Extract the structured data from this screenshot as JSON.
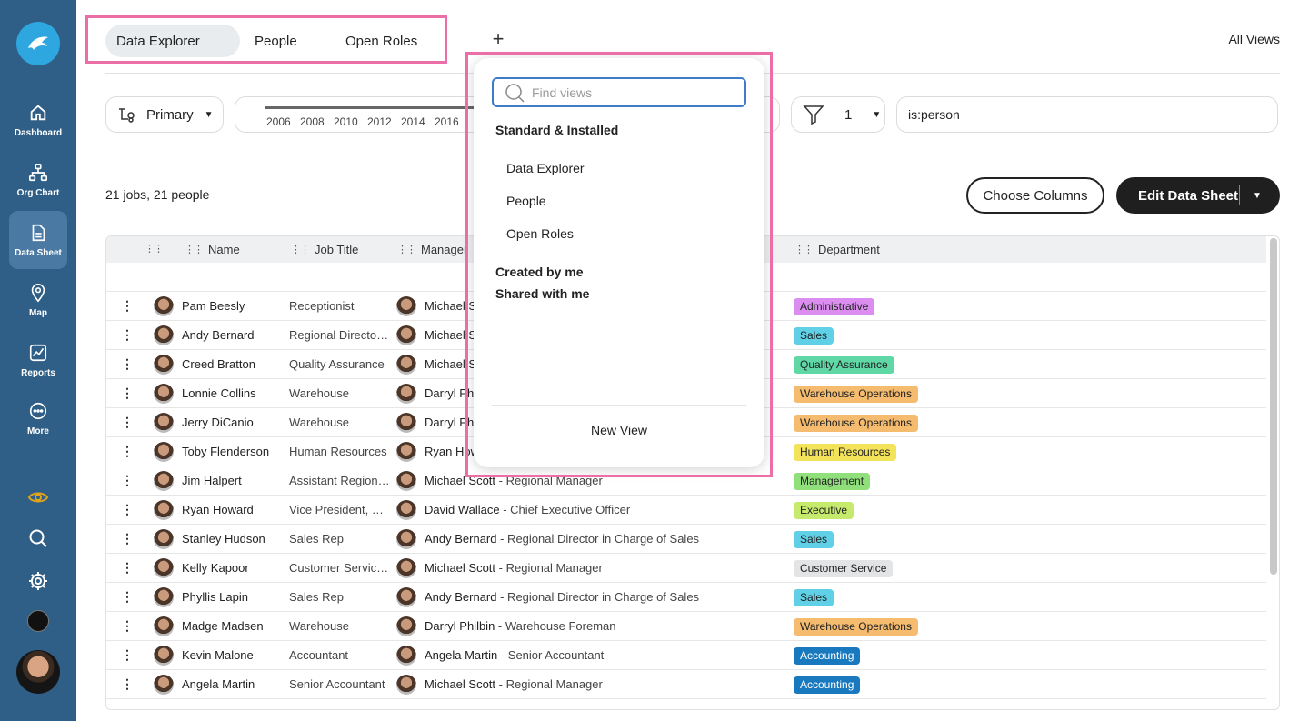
{
  "sidebar": {
    "items": [
      {
        "label": "Dashboard",
        "icon": "home-icon"
      },
      {
        "label": "Org Chart",
        "icon": "org-chart-icon"
      },
      {
        "label": "Data Sheet",
        "icon": "document-icon"
      },
      {
        "label": "Map",
        "icon": "map-pin-icon"
      },
      {
        "label": "Reports",
        "icon": "chart-icon"
      },
      {
        "label": "More",
        "icon": "more-icon"
      }
    ],
    "accent_eye": "#e0a41a"
  },
  "tabs": [
    "Data Explorer",
    "People",
    "Open Roles"
  ],
  "header": {
    "all_views": "All Views"
  },
  "toolbar": {
    "primary": "Primary",
    "years": [
      "2006",
      "2008",
      "2010",
      "2012",
      "2014",
      "2016"
    ],
    "filter_count": "1",
    "query": "is:person"
  },
  "summary": "21 jobs, 21 people",
  "buttons": {
    "choose_columns": "Choose Columns",
    "edit_data_sheet": "Edit Data Sheet"
  },
  "table": {
    "columns": [
      "Name",
      "Job Title",
      "Manager",
      "Department"
    ],
    "rows": [
      {
        "name": "Pam Beesly",
        "job": "Receptionist",
        "manager": "Michael Sc",
        "manager_title": "",
        "dept": "Administrative",
        "color": "#dc8ef0"
      },
      {
        "name": "Andy Bernard",
        "job": "Regional Director…",
        "manager": "Michael Sc",
        "manager_title": "",
        "dept": "Sales",
        "color": "#5fd0e6"
      },
      {
        "name": "Creed Bratton",
        "job": "Quality Assurance",
        "manager": "Michael Sc",
        "manager_title": "",
        "dept": "Quality Assurance",
        "color": "#5fd8a6"
      },
      {
        "name": "Lonnie Collins",
        "job": "Warehouse",
        "manager": "Darryl Phi",
        "manager_title": "",
        "dept": "Warehouse Operations",
        "color": "#f5bb6e"
      },
      {
        "name": "Jerry DiCanio",
        "job": "Warehouse",
        "manager": "Darryl Phi",
        "manager_title": "",
        "dept": "Warehouse Operations",
        "color": "#f5bb6e"
      },
      {
        "name": "Toby Flenderson",
        "job": "Human Resources",
        "manager": "Ryan How",
        "manager_title": "",
        "dept": "Human Resources",
        "color": "#f3e35a"
      },
      {
        "name": "Jim Halpert",
        "job": "Assistant Regiona…",
        "manager": "Michael Scott",
        "manager_title": " - Regional Manager",
        "dept": "Management",
        "color": "#8fe07a"
      },
      {
        "name": "Ryan Howard",
        "job": "Vice President, N…",
        "manager": "David Wallace",
        "manager_title": " - Chief Executive Officer",
        "dept": "Executive",
        "color": "#c6ea6c"
      },
      {
        "name": "Stanley Hudson",
        "job": "Sales Rep",
        "manager": "Andy Bernard",
        "manager_title": " - Regional Director in Charge of Sales",
        "dept": "Sales",
        "color": "#5fd0e6"
      },
      {
        "name": "Kelly Kapoor",
        "job": "Customer Service…",
        "manager": "Michael Scott",
        "manager_title": " - Regional Manager",
        "dept": "Customer Service",
        "color": "#e3e4e6"
      },
      {
        "name": "Phyllis Lapin",
        "job": "Sales Rep",
        "manager": "Andy Bernard",
        "manager_title": " - Regional Director in Charge of Sales",
        "dept": "Sales",
        "color": "#5fd0e6"
      },
      {
        "name": "Madge Madsen",
        "job": "Warehouse",
        "manager": "Darryl Philbin",
        "manager_title": " - Warehouse Foreman",
        "dept": "Warehouse Operations",
        "color": "#f5bb6e"
      },
      {
        "name": "Kevin Malone",
        "job": "Accountant",
        "manager": "Angela Martin",
        "manager_title": " - Senior Accountant",
        "dept": "Accounting",
        "color": "#1979bf"
      },
      {
        "name": "Angela Martin",
        "job": "Senior Accountant",
        "manager": "Michael Scott",
        "manager_title": " - Regional Manager",
        "dept": "Accounting",
        "color": "#1979bf"
      }
    ]
  },
  "dropdown": {
    "placeholder": "Find views",
    "section_standard": "Standard & Installed",
    "items": [
      "Data Explorer",
      "People",
      "Open Roles"
    ],
    "section_created": "Created by me",
    "section_shared": "Shared with me",
    "new_view": "New View"
  },
  "colors": {
    "sidebar": "#2f5f86",
    "highlight": "#ec6ea7",
    "search_border": "#3d7cc9"
  }
}
